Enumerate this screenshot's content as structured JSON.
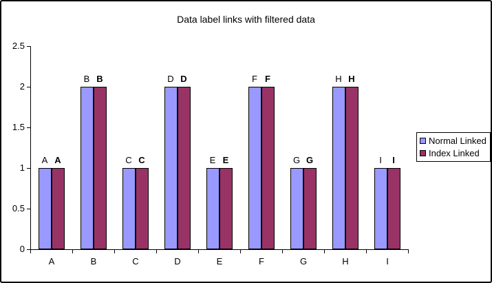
{
  "chart_data": {
    "type": "bar",
    "title": "Data label links with filtered data",
    "categories": [
      "A",
      "B",
      "C",
      "D",
      "E",
      "F",
      "G",
      "H",
      "I"
    ],
    "series": [
      {
        "name": "Normal Linked",
        "color": "#9999ff",
        "values": [
          1,
          2,
          1,
          2,
          1,
          2,
          1,
          2,
          1
        ],
        "data_labels": [
          "A",
          "B",
          "C",
          "D",
          "E",
          "F",
          "G",
          "H",
          "I"
        ],
        "data_label_bold": false
      },
      {
        "name": "Index Linked",
        "color": "#993366",
        "values": [
          1,
          2,
          1,
          2,
          1,
          2,
          1,
          2,
          1
        ],
        "data_labels": [
          "A",
          "B",
          "C",
          "D",
          "E",
          "F",
          "G",
          "H",
          "I"
        ],
        "data_label_bold": true
      }
    ],
    "ylim": [
      0,
      2.5
    ],
    "ytick_step": 0.5,
    "ytick_labels": [
      "0",
      "0.5",
      "1",
      "1.5",
      "2",
      "2.5"
    ],
    "grid": false,
    "legend_position": "right",
    "bar_border_color": "#000000",
    "background_color": "#ffffff"
  }
}
